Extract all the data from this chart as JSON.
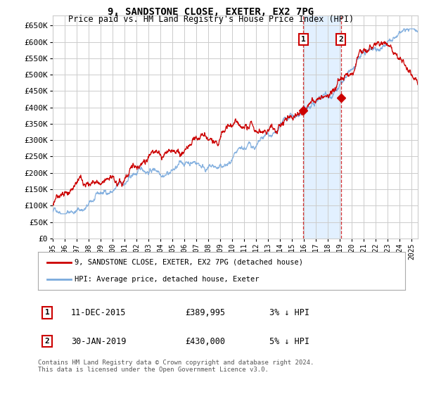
{
  "title": "9, SANDSTONE CLOSE, EXETER, EX2 7PG",
  "subtitle": "Price paid vs. HM Land Registry's House Price Index (HPI)",
  "ytick_values": [
    0,
    50000,
    100000,
    150000,
    200000,
    250000,
    300000,
    350000,
    400000,
    450000,
    500000,
    550000,
    600000,
    650000
  ],
  "ylim": [
    0,
    680000
  ],
  "xlim_start": 1995.0,
  "xlim_end": 2025.5,
  "transaction1": {
    "date": 2015.95,
    "price": 389995,
    "label": "1",
    "text": "11-DEC-2015",
    "amount": "£389,995",
    "hpi_pct": "3% ↓ HPI"
  },
  "transaction2": {
    "date": 2019.08,
    "price": 430000,
    "label": "2",
    "text": "30-JAN-2019",
    "amount": "£430,000",
    "hpi_pct": "5% ↓ HPI"
  },
  "legend_line1": "9, SANDSTONE CLOSE, EXETER, EX2 7PG (detached house)",
  "legend_line2": "HPI: Average price, detached house, Exeter",
  "footer": "Contains HM Land Registry data © Crown copyright and database right 2024.\nThis data is licensed under the Open Government Licence v3.0.",
  "grid_color": "#cccccc",
  "hpi_color": "#7aaadd",
  "price_color": "#cc0000",
  "bg_color": "#ffffff",
  "highlight_bg": "#ddeeff",
  "num_points": 1800
}
